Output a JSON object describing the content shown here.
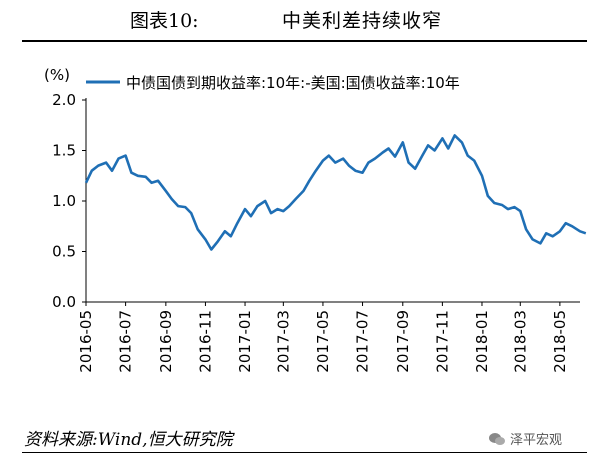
{
  "figure": {
    "number": "图表10:",
    "title": "中美利差持续收窄"
  },
  "source": "资料来源:Wind,恒大研究院",
  "watermark": {
    "text": "泽平宏观",
    "icon": "wechat-icon"
  },
  "colors": {
    "series": "#1f6fb5",
    "axis": "#000000"
  },
  "chart_data": {
    "type": "line",
    "title": "中美利差持续收窄",
    "ylabel": "(%)",
    "xlabel": "",
    "ylim": [
      0.0,
      2.0
    ],
    "yticks": [
      0.0,
      0.5,
      1.0,
      1.5,
      2.0
    ],
    "ytick_labels": [
      "0.0",
      "0.5",
      "1.0",
      "1.5",
      "2.0"
    ],
    "xlim": [
      "2016-05",
      "2018-06"
    ],
    "xticks": [
      "2016-05",
      "2016-07",
      "2016-09",
      "2016-11",
      "2017-01",
      "2017-03",
      "2017-05",
      "2017-07",
      "2017-09",
      "2017-11",
      "2018-01",
      "2018-03",
      "2018-05"
    ],
    "grid": false,
    "legend_position": "top",
    "series": [
      {
        "name": "中债国债到期收益率:10年:-美国:国债收益率:10年",
        "x": [
          "2016-05-01",
          "2016-05-10",
          "2016-05-20",
          "2016-06-01",
          "2016-06-10",
          "2016-06-20",
          "2016-07-01",
          "2016-07-10",
          "2016-07-20",
          "2016-08-01",
          "2016-08-10",
          "2016-08-20",
          "2016-09-01",
          "2016-09-10",
          "2016-09-20",
          "2016-10-01",
          "2016-10-10",
          "2016-10-20",
          "2016-11-01",
          "2016-11-10",
          "2016-11-20",
          "2016-12-01",
          "2016-12-10",
          "2016-12-20",
          "2017-01-01",
          "2017-01-10",
          "2017-01-20",
          "2017-02-01",
          "2017-02-10",
          "2017-02-20",
          "2017-03-01",
          "2017-03-10",
          "2017-03-20",
          "2017-04-01",
          "2017-04-10",
          "2017-04-20",
          "2017-05-01",
          "2017-05-10",
          "2017-05-20",
          "2017-06-01",
          "2017-06-10",
          "2017-06-20",
          "2017-07-01",
          "2017-07-10",
          "2017-07-20",
          "2017-08-01",
          "2017-08-10",
          "2017-08-20",
          "2017-09-01",
          "2017-09-10",
          "2017-09-20",
          "2017-10-01",
          "2017-10-10",
          "2017-10-20",
          "2017-11-01",
          "2017-11-10",
          "2017-11-20",
          "2017-12-01",
          "2017-12-10",
          "2017-12-20",
          "2018-01-01",
          "2018-01-10",
          "2018-01-20",
          "2018-02-01",
          "2018-02-10",
          "2018-02-20",
          "2018-03-01",
          "2018-03-10",
          "2018-03-20",
          "2018-04-01",
          "2018-04-10",
          "2018-04-20",
          "2018-05-01",
          "2018-05-10",
          "2018-05-20",
          "2018-06-01",
          "2018-06-10"
        ],
        "values": [
          1.18,
          1.3,
          1.35,
          1.38,
          1.3,
          1.42,
          1.45,
          1.28,
          1.25,
          1.24,
          1.18,
          1.2,
          1.1,
          1.02,
          0.95,
          0.94,
          0.88,
          0.72,
          0.62,
          0.52,
          0.6,
          0.7,
          0.65,
          0.78,
          0.92,
          0.85,
          0.95,
          1.0,
          0.88,
          0.92,
          0.9,
          0.95,
          1.02,
          1.1,
          1.2,
          1.3,
          1.4,
          1.45,
          1.38,
          1.42,
          1.35,
          1.3,
          1.28,
          1.38,
          1.42,
          1.48,
          1.52,
          1.44,
          1.58,
          1.38,
          1.32,
          1.45,
          1.55,
          1.5,
          1.62,
          1.52,
          1.65,
          1.58,
          1.45,
          1.4,
          1.25,
          1.05,
          0.98,
          0.96,
          0.92,
          0.94,
          0.9,
          0.72,
          0.62,
          0.58,
          0.68,
          0.65,
          0.7,
          0.78,
          0.75,
          0.7,
          0.68
        ]
      }
    ]
  }
}
